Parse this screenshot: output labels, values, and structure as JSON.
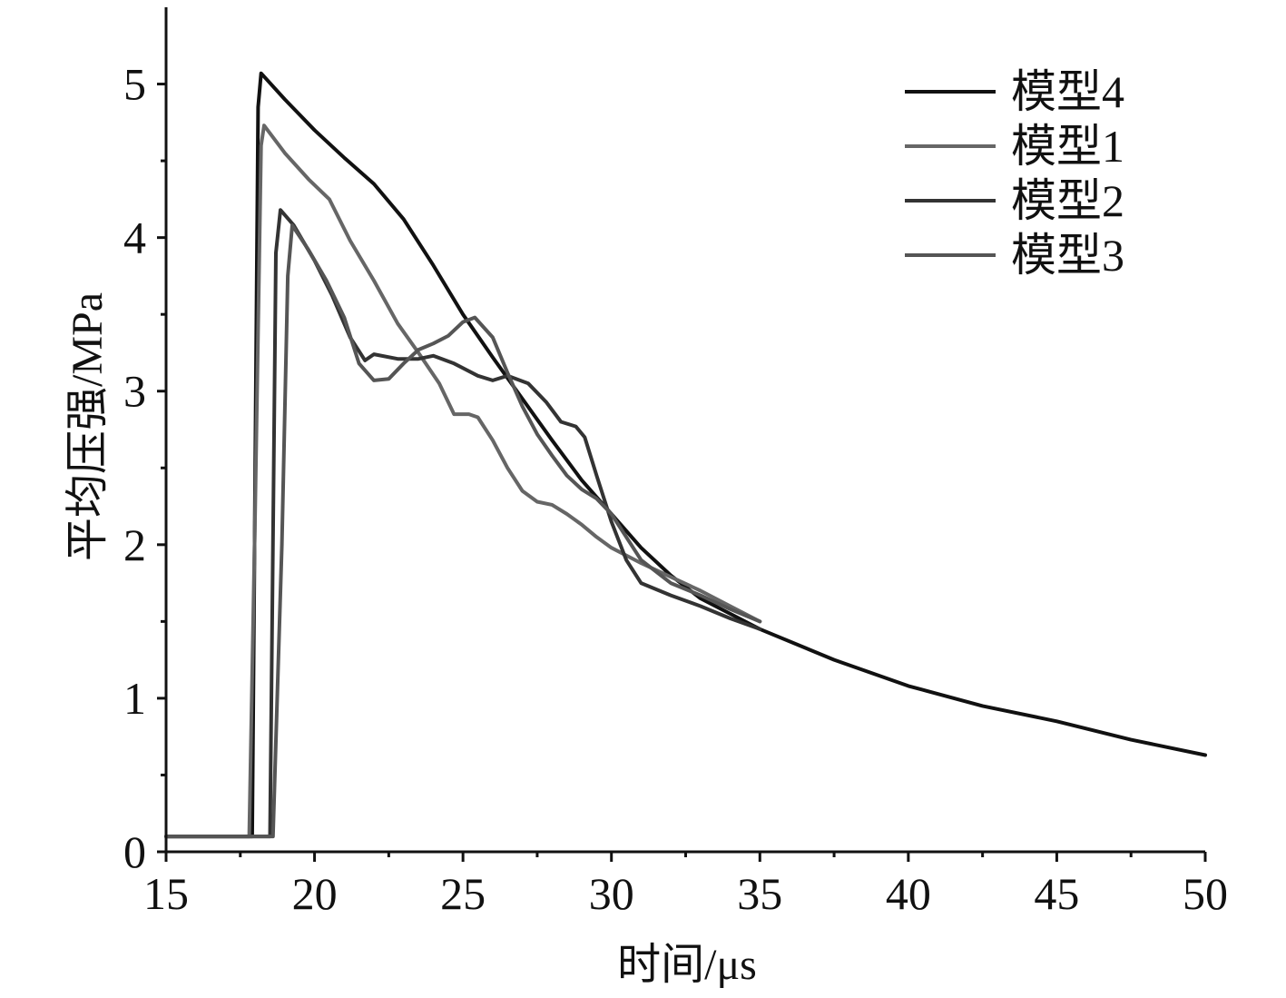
{
  "chart_data": {
    "type": "line",
    "xlabel": "时间/μs",
    "ylabel": "平均压强/MPa",
    "xlim": [
      15,
      50
    ],
    "ylim": [
      0,
      5.5
    ],
    "xticks": [
      15,
      20,
      25,
      30,
      35,
      40,
      45,
      50
    ],
    "xtick_labels": [
      "15",
      "20",
      "25",
      "30",
      "35",
      "40",
      "45",
      "50"
    ],
    "yticks": [
      0,
      1,
      2,
      3,
      4,
      5
    ],
    "ytick_labels": [
      "0",
      "1",
      "2",
      "3",
      "4",
      "5"
    ],
    "grid": false,
    "legend_position": "top-right",
    "series": [
      {
        "name": "模型4",
        "color": "#111111",
        "points": [
          [
            15.0,
            0.1
          ],
          [
            17.9,
            0.1
          ],
          [
            18.1,
            4.85
          ],
          [
            18.2,
            5.07
          ],
          [
            19.0,
            4.9
          ],
          [
            20.0,
            4.7
          ],
          [
            21.0,
            4.52
          ],
          [
            22.0,
            4.35
          ],
          [
            23.0,
            4.12
          ],
          [
            24.0,
            3.82
          ],
          [
            25.0,
            3.5
          ],
          [
            26.0,
            3.22
          ],
          [
            27.0,
            2.95
          ],
          [
            28.0,
            2.68
          ],
          [
            29.0,
            2.42
          ],
          [
            30.0,
            2.2
          ],
          [
            31.0,
            1.98
          ],
          [
            32.0,
            1.8
          ],
          [
            33.0,
            1.65
          ],
          [
            34.0,
            1.55
          ],
          [
            35.0,
            1.45
          ],
          [
            37.5,
            1.25
          ],
          [
            40.0,
            1.08
          ],
          [
            42.5,
            0.95
          ],
          [
            45.0,
            0.85
          ],
          [
            47.5,
            0.73
          ],
          [
            50.0,
            0.63
          ]
        ]
      },
      {
        "name": "模型1",
        "color": "#666666",
        "points": [
          [
            15.0,
            0.1
          ],
          [
            17.8,
            0.1
          ],
          [
            18.0,
            2.2
          ],
          [
            18.2,
            4.6
          ],
          [
            18.3,
            4.73
          ],
          [
            19.0,
            4.55
          ],
          [
            19.8,
            4.38
          ],
          [
            20.5,
            4.25
          ],
          [
            21.2,
            3.98
          ],
          [
            22.0,
            3.72
          ],
          [
            22.8,
            3.44
          ],
          [
            23.5,
            3.25
          ],
          [
            24.2,
            3.05
          ],
          [
            24.7,
            2.85
          ],
          [
            25.2,
            2.85
          ],
          [
            25.5,
            2.83
          ],
          [
            26.0,
            2.68
          ],
          [
            26.5,
            2.5
          ],
          [
            27.0,
            2.35
          ],
          [
            27.5,
            2.28
          ],
          [
            28.0,
            2.26
          ],
          [
            28.5,
            2.2
          ],
          [
            29.0,
            2.13
          ],
          [
            29.5,
            2.05
          ],
          [
            30.0,
            1.98
          ],
          [
            31.0,
            1.88
          ],
          [
            32.0,
            1.79
          ],
          [
            33.0,
            1.7
          ],
          [
            34.0,
            1.6
          ],
          [
            35.0,
            1.5
          ]
        ]
      },
      {
        "name": "模型2",
        "color": "#333333",
        "points": [
          [
            15.0,
            0.1
          ],
          [
            18.5,
            0.1
          ],
          [
            18.7,
            3.9
          ],
          [
            18.85,
            4.18
          ],
          [
            19.3,
            4.08
          ],
          [
            20.0,
            3.85
          ],
          [
            20.6,
            3.62
          ],
          [
            21.2,
            3.35
          ],
          [
            21.7,
            3.2
          ],
          [
            22.0,
            3.24
          ],
          [
            22.8,
            3.21
          ],
          [
            23.5,
            3.21
          ],
          [
            24.0,
            3.23
          ],
          [
            24.7,
            3.18
          ],
          [
            25.5,
            3.1
          ],
          [
            26.0,
            3.07
          ],
          [
            26.5,
            3.1
          ],
          [
            27.2,
            3.05
          ],
          [
            27.8,
            2.93
          ],
          [
            28.3,
            2.8
          ],
          [
            28.8,
            2.77
          ],
          [
            29.1,
            2.7
          ],
          [
            29.5,
            2.45
          ],
          [
            30.0,
            2.15
          ],
          [
            30.5,
            1.9
          ],
          [
            31.0,
            1.75
          ],
          [
            32.0,
            1.67
          ],
          [
            33.0,
            1.6
          ],
          [
            34.0,
            1.52
          ],
          [
            35.0,
            1.45
          ]
        ]
      },
      {
        "name": "模型3",
        "color": "#555555",
        "points": [
          [
            15.0,
            0.1
          ],
          [
            18.6,
            0.1
          ],
          [
            18.9,
            2.0
          ],
          [
            19.1,
            3.75
          ],
          [
            19.25,
            4.08
          ],
          [
            19.8,
            3.92
          ],
          [
            20.4,
            3.72
          ],
          [
            21.0,
            3.48
          ],
          [
            21.5,
            3.18
          ],
          [
            22.0,
            3.07
          ],
          [
            22.5,
            3.08
          ],
          [
            23.0,
            3.18
          ],
          [
            23.5,
            3.27
          ],
          [
            24.0,
            3.31
          ],
          [
            24.5,
            3.36
          ],
          [
            25.0,
            3.45
          ],
          [
            25.4,
            3.48
          ],
          [
            26.0,
            3.35
          ],
          [
            26.5,
            3.12
          ],
          [
            27.0,
            2.9
          ],
          [
            27.5,
            2.72
          ],
          [
            28.0,
            2.58
          ],
          [
            28.5,
            2.45
          ],
          [
            29.0,
            2.36
          ],
          [
            29.5,
            2.3
          ],
          [
            30.0,
            2.2
          ],
          [
            30.5,
            2.05
          ],
          [
            31.0,
            1.9
          ],
          [
            32.0,
            1.75
          ],
          [
            33.0,
            1.67
          ],
          [
            34.0,
            1.58
          ],
          [
            35.0,
            1.5
          ]
        ]
      }
    ]
  }
}
